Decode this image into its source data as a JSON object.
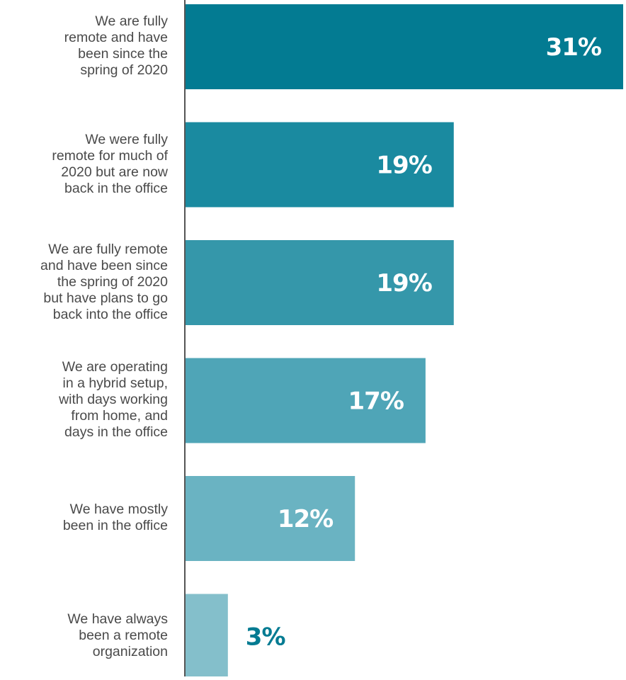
{
  "chart_data": {
    "type": "bar",
    "orientation": "horizontal",
    "categories": [
      "We are fully\nremote and have\nbeen since the\nspring of 2020",
      "We were fully\nremote for much of\n2020 but are now\nback in the office",
      "We are fully remote\nand have been since\nthe spring of 2020\nbut have plans to go\nback into the office",
      "We are operating\nin a hybrid setup,\nwith days working\nfrom home, and\ndays in the office",
      "We have mostly\nbeen in the office",
      "We have always\nbeen a remote\norganization"
    ],
    "values": [
      31,
      19,
      19,
      17,
      12,
      3
    ],
    "value_labels": [
      "31%",
      "19%",
      "19%",
      "17%",
      "12%",
      "3%"
    ],
    "unit": "%",
    "title": "",
    "xlabel": "",
    "ylabel": "",
    "xlim": [
      0,
      31
    ],
    "grid": false,
    "legend": "none",
    "colors": {
      "bars": [
        "#037b92",
        "#1a8aa0",
        "#3597aa",
        "#4fa5b7",
        "#6ab3c2",
        "#84bfcb"
      ],
      "label_inside": "#ffffff",
      "label_outside": "#037b92",
      "axis": "#555555",
      "category_text": "#4a4a4a"
    }
  }
}
